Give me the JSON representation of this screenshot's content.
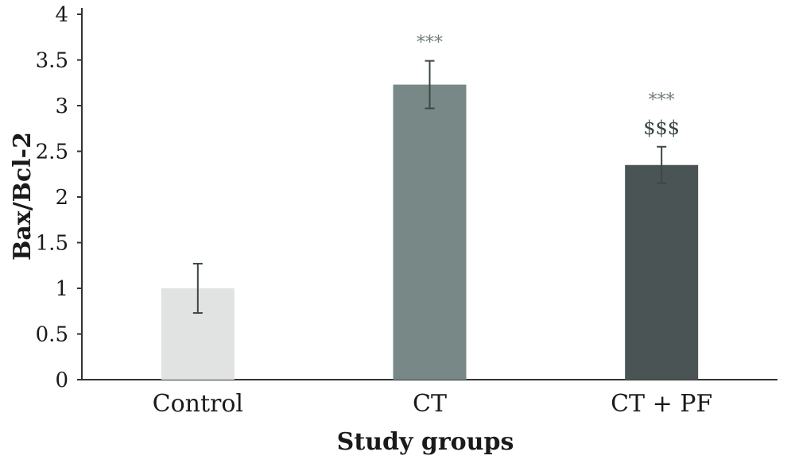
{
  "chart_data": {
    "type": "bar",
    "xlabel": "Study groups",
    "ylabel": "Bax/Bcl-2",
    "ylim": [
      0,
      4
    ],
    "yticks": [
      "0",
      "0.5",
      "1",
      "1.5",
      "2",
      "2.5",
      "3",
      "3.5",
      "4"
    ],
    "categories": [
      "Control",
      "CT",
      "CT + PF"
    ],
    "values": [
      1.0,
      3.23,
      2.35
    ],
    "errors": [
      0.27,
      0.26,
      0.2
    ],
    "colors": [
      "#e1e3e2",
      "#778887",
      "#4a5454"
    ],
    "annotations": [
      [],
      [
        "***"
      ],
      [
        "***",
        "$$$"
      ]
    ],
    "grid": false
  }
}
